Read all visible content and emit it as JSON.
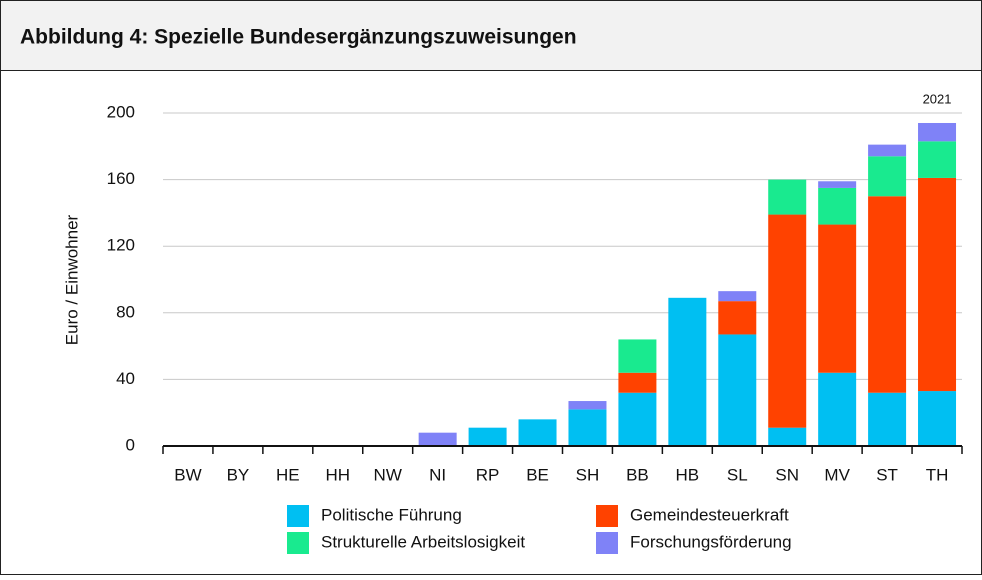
{
  "chart_data": {
    "type": "stacked_bar",
    "title": "Abbildung 4: Spezielle Bundesergänzungszuweisungen",
    "y_label": "Euro / Einwohner",
    "annotation": "2021",
    "categories": [
      "BW",
      "BY",
      "HE",
      "HH",
      "NW",
      "NI",
      "RP",
      "BE",
      "SH",
      "BB",
      "HB",
      "SL",
      "SN",
      "MV",
      "ST",
      "TH"
    ],
    "series": [
      {
        "name": "Politische Führung",
        "color": "#00bff2",
        "values": [
          0,
          0,
          0,
          0,
          0,
          0,
          11,
          16,
          22,
          32,
          89,
          67,
          11,
          44,
          32,
          33
        ]
      },
      {
        "name": "Gemeindesteuerkraft",
        "color": "#ff4200",
        "values": [
          0,
          0,
          0,
          0,
          0,
          0,
          0,
          0,
          0,
          12,
          0,
          20,
          128,
          89,
          118,
          128
        ]
      },
      {
        "name": "Strukturelle Arbeitslosigkeit",
        "color": "#19ea8f",
        "values": [
          0,
          0,
          0,
          0,
          0,
          0,
          0,
          0,
          0,
          20,
          0,
          0,
          21,
          22,
          24,
          22
        ]
      },
      {
        "name": "Forschungsförderung",
        "color": "#7f82f7",
        "values": [
          0,
          0,
          0,
          0,
          0,
          8,
          0,
          0,
          5,
          0,
          0,
          6,
          0,
          4,
          7,
          11
        ]
      }
    ],
    "ylim": [
      0,
      200
    ],
    "yticks": [
      0,
      40,
      80,
      120,
      160,
      200
    ],
    "grid": true
  }
}
